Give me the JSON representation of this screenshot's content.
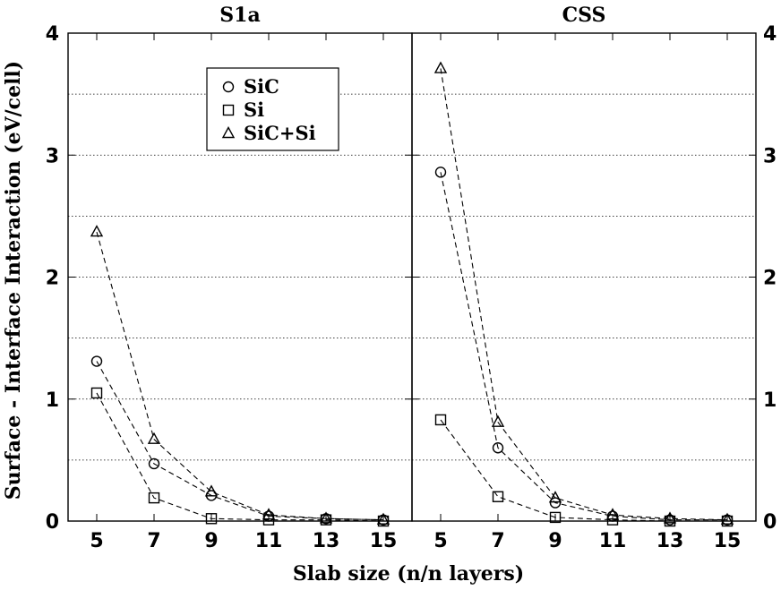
{
  "chart_data": {
    "type": "line",
    "xlabel": "Slab size (n/n layers)",
    "ylabel": "Surface - Interface Interaction (eV/cell)",
    "x_ticks": [
      5,
      7,
      9,
      11,
      13,
      15
    ],
    "y_ticks": [
      0,
      1,
      2,
      3,
      4
    ],
    "xlim": [
      4,
      16
    ],
    "ylim": [
      0,
      4
    ],
    "grid": "horizontal dotted at 0.5 intervals",
    "legend": {
      "position": "top-center of left panel",
      "entries": [
        {
          "name": "SiC",
          "marker": "circle"
        },
        {
          "name": "Si",
          "marker": "square"
        },
        {
          "name": "SiC+Si",
          "marker": "triangle"
        }
      ]
    },
    "panels": [
      {
        "title": "S1a",
        "x": [
          5,
          7,
          9,
          11,
          13,
          15
        ],
        "series": [
          {
            "name": "SiC",
            "marker": "circle",
            "values": [
              1.31,
              0.47,
              0.21,
              0.04,
              0.02,
              0.01
            ]
          },
          {
            "name": "Si",
            "marker": "square",
            "values": [
              1.05,
              0.19,
              0.02,
              0.01,
              0.01,
              0.0
            ]
          },
          {
            "name": "SiC+Si",
            "marker": "triangle",
            "values": [
              2.37,
              0.67,
              0.24,
              0.05,
              0.02,
              0.01
            ]
          }
        ]
      },
      {
        "title": "CSS",
        "x": [
          5,
          7,
          9,
          11,
          13,
          15
        ],
        "series": [
          {
            "name": "SiC",
            "marker": "circle",
            "values": [
              2.86,
              0.6,
              0.15,
              0.04,
              0.01,
              0.01
            ]
          },
          {
            "name": "Si",
            "marker": "square",
            "values": [
              0.83,
              0.2,
              0.03,
              0.01,
              0.0,
              0.0
            ]
          },
          {
            "name": "SiC+Si",
            "marker": "triangle",
            "values": [
              3.71,
              0.81,
              0.19,
              0.05,
              0.02,
              0.01
            ]
          }
        ]
      }
    ]
  }
}
